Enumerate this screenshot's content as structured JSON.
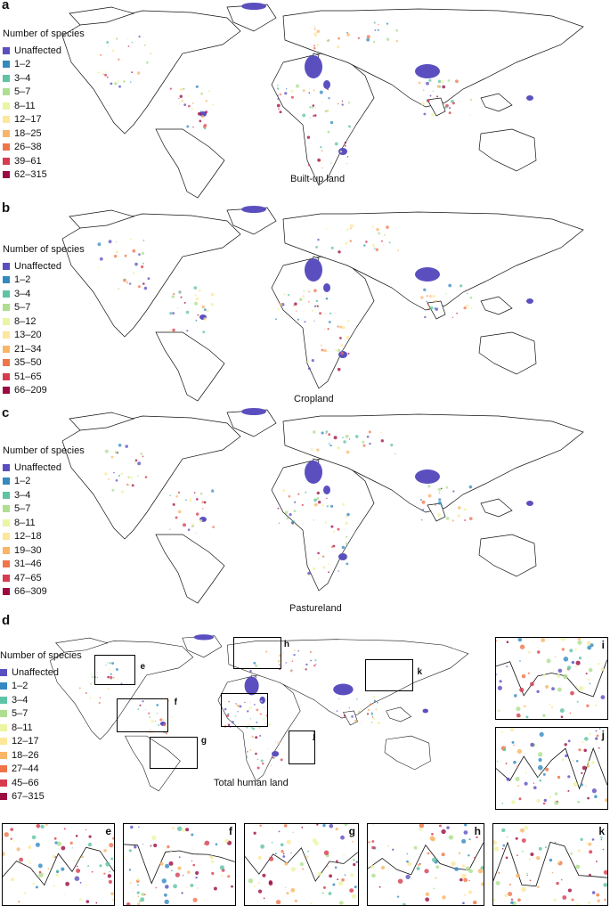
{
  "panels": [
    {
      "id": "a",
      "letter": "a",
      "legend_title": "Number of species",
      "classes": [
        "Unaffected",
        "1–2",
        "3–4",
        "5–7",
        "8–11",
        "12–17",
        "18–25",
        "26–38",
        "39–61",
        "62–315"
      ],
      "caption": "Built-up land"
    },
    {
      "id": "b",
      "letter": "b",
      "legend_title": "Number of species",
      "classes": [
        "Unaffected",
        "1–2",
        "3–4",
        "5–7",
        "8–12",
        "13–20",
        "21–34",
        "35–50",
        "51–65",
        "66–209"
      ],
      "caption": "Cropland"
    },
    {
      "id": "c",
      "letter": "c",
      "legend_title": "Number of species",
      "classes": [
        "Unaffected",
        "1–2",
        "3–4",
        "5–7",
        "8–11",
        "12–18",
        "19–30",
        "31–46",
        "47–65",
        "66–309"
      ],
      "caption": "Pastureland"
    },
    {
      "id": "d",
      "letter": "d",
      "legend_title": "Number of species",
      "classes": [
        "Unaffected",
        "1–2",
        "3–4",
        "5–7",
        "8–11",
        "12–17",
        "18–26",
        "27–44",
        "45–66",
        "67–315"
      ],
      "caption": "Total human land"
    }
  ],
  "class_colors": [
    "#5b4fc0",
    "#3389c0",
    "#5fc3a6",
    "#aede8f",
    "#ecf5a3",
    "#fde79a",
    "#f9b567",
    "#f0744a",
    "#d73b4f",
    "#9c0a42"
  ],
  "map_colors": {
    "land_outline": "#111111",
    "unaffected": "#5b4fc0"
  },
  "zoom_labels": [
    "e",
    "f",
    "g",
    "h",
    "i",
    "j",
    "k"
  ],
  "insets": [
    {
      "label": "i"
    },
    {
      "label": "j"
    },
    {
      "label": "e"
    },
    {
      "label": "f"
    },
    {
      "label": "g"
    },
    {
      "label": "h"
    },
    {
      "label": "k"
    }
  ]
}
